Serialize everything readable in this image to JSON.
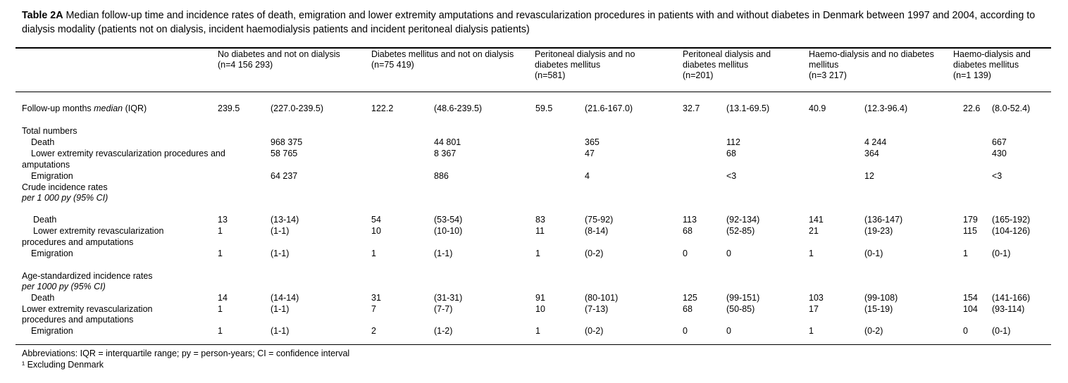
{
  "caption": {
    "label": "Table 2A",
    "text": " Median follow-up time and incidence rates of death, emigration and lower extremity amputations and revascularization procedures in patients with and without diabetes in Denmark between 1997 and 2004, according to dialysis modality (patients not on dialysis, incident haemodialysis patients and incident peritoneal dialysis patients)"
  },
  "columns": [
    {
      "line1": "No diabetes and not on dialysis",
      "line2": "(n=4 156 293)",
      "line3": ""
    },
    {
      "line1": "Diabetes mellitus and not on dialysis",
      "line2": "(n=75 419)",
      "line3": ""
    },
    {
      "line1": "Peritoneal dialysis and no",
      "line2": "diabetes mellitus",
      "line3": "(n=581)"
    },
    {
      "line1": "Peritoneal dialysis and",
      "line2": "diabetes mellitus",
      "line3": "(n=201)"
    },
    {
      "line1": "Haemo-dialysis and no diabetes",
      "line2": "mellitus",
      "line3": "(n=3 217)"
    },
    {
      "line1": "Haemo-dialysis and",
      "line2": "diabetes mellitus",
      "line3": "(n=1 139)"
    }
  ],
  "followup": {
    "label_prefix": "Follow-up months ",
    "label_italic": "median",
    "label_suffix": " (IQR)",
    "values": [
      [
        "239.5",
        "(227.0-239.5)"
      ],
      [
        "122.2",
        "(48.6-239.5)"
      ],
      [
        "59.5",
        "(21.6-167.0)"
      ],
      [
        "32.7",
        "(13.1-69.5)"
      ],
      [
        "40.9",
        "(12.3-96.4)"
      ],
      [
        "22.6",
        "(8.0-52.4)"
      ]
    ]
  },
  "totals": {
    "heading": "Total numbers",
    "death_label": "Death",
    "death": [
      "968 375",
      "44 801",
      "365",
      "112",
      "4 244",
      "667"
    ],
    "lower_label_1": "Lower extremity revascularization procedures and",
    "lower_label_2": "amputations",
    "lower": [
      "58 765",
      "8 367",
      "47",
      "68",
      "364",
      "430"
    ],
    "emig_label": "Emigration",
    "emig": [
      "64 237",
      "886",
      "4",
      "<3",
      "12",
      "<3"
    ]
  },
  "crude": {
    "heading": "Crude incidence rates",
    "heading_italic": "per 1 000 py (95% CI)",
    "death_label": "Death",
    "death": [
      [
        "13",
        "(13-14)"
      ],
      [
        "54",
        "(53-54)"
      ],
      [
        "83",
        "(75-92)"
      ],
      [
        "113",
        "(92-134)"
      ],
      [
        "141",
        "(136-147)"
      ],
      [
        "179",
        "(165-192)"
      ]
    ],
    "lower_label_1": "Lower extremity revascularization",
    "lower_label_2": "procedures and amputations",
    "lower": [
      [
        "1",
        "(1-1)"
      ],
      [
        "10",
        "(10-10)"
      ],
      [
        "11",
        "(8-14)"
      ],
      [
        "68",
        "(52-85)"
      ],
      [
        "21",
        "(19-23)"
      ],
      [
        "115",
        "(104-126)"
      ]
    ],
    "emig_label": "Emigration",
    "emig": [
      [
        "1",
        "(1-1)"
      ],
      [
        "1",
        "(1-1)"
      ],
      [
        "1",
        "(0-2)"
      ],
      [
        "0",
        "0"
      ],
      [
        "1",
        "(0-1)"
      ],
      [
        "1",
        "(0-1)"
      ]
    ]
  },
  "agestd": {
    "heading": "Age-standardized incidence rates",
    "heading_italic": "per 1000 py (95% CI)",
    "death_label": "Death",
    "death": [
      [
        "14",
        "(14-14)"
      ],
      [
        "31",
        "(31-31)"
      ],
      [
        "91",
        "(80-101)"
      ],
      [
        "125",
        "(99-151)"
      ],
      [
        "103",
        "(99-108)"
      ],
      [
        "154",
        "(141-166)"
      ]
    ],
    "lower_label_1": "Lower extremity revascularization",
    "lower_label_2": "procedures and amputations",
    "lower": [
      [
        "1",
        "(1-1)"
      ],
      [
        "7",
        "(7-7)"
      ],
      [
        "10",
        "(7-13)"
      ],
      [
        "68",
        "(50-85)"
      ],
      [
        "17",
        "(15-19)"
      ],
      [
        "104",
        "(93-114)"
      ]
    ],
    "emig_label": "Emigration",
    "emig": [
      [
        "1",
        "(1-1)"
      ],
      [
        "2",
        "(1-2)"
      ],
      [
        "1",
        "(0-2)"
      ],
      [
        "0",
        "0"
      ],
      [
        "1",
        "(0-2)"
      ],
      [
        "0",
        "(0-1)"
      ]
    ]
  },
  "footnotes": [
    "Abbreviations: IQR = interquartile range; py = person-years; CI = confidence interval",
    "¹ Excluding Denmark"
  ]
}
